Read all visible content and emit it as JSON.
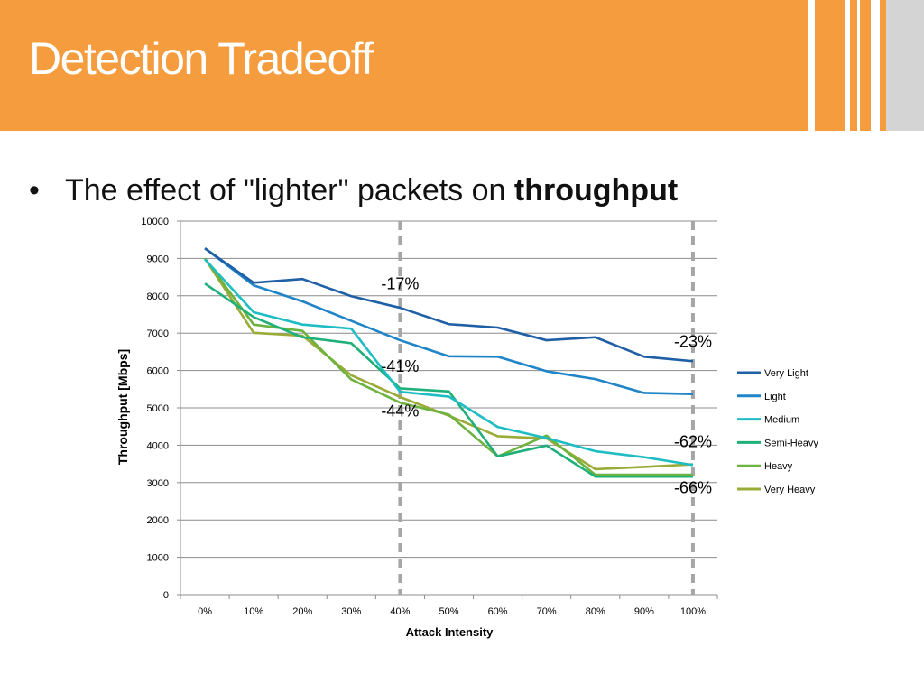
{
  "slide": {
    "title": "Detection Tradeoff",
    "bullet_prefix": "The effect of \"lighter\" packets on ",
    "bullet_bold": "throughput",
    "bullet_symbol": "•"
  },
  "colors": {
    "header": "#f49c3e",
    "very_light": "#1f5fa6",
    "light": "#1f84c8",
    "medium": "#1ebdc4",
    "semi_heavy": "#1fb07a",
    "heavy": "#6db33f",
    "very_heavy": "#9aab38"
  },
  "chart_data": {
    "type": "line",
    "xlabel": "Attack Intensity",
    "ylabel": "Throughput [Mbps]",
    "categories": [
      "0%",
      "10%",
      "20%",
      "30%",
      "40%",
      "50%",
      "60%",
      "70%",
      "80%",
      "90%",
      "100%"
    ],
    "ylim": [
      0,
      10000
    ],
    "yticks": [
      "0",
      "1000",
      "2000",
      "3000",
      "4000",
      "5000",
      "6000",
      "7000",
      "8000",
      "9000",
      "10000"
    ],
    "grid": true,
    "legend": "right",
    "series": [
      {
        "name": "Very Light",
        "color": "#1f5fa6",
        "values": [
          9270,
          8350,
          8450,
          7990,
          7680,
          7240,
          7150,
          6810,
          6890,
          6370,
          6250
        ]
      },
      {
        "name": "Light",
        "color": "#1f84c8",
        "values": [
          9270,
          8280,
          7850,
          7330,
          6810,
          6380,
          6370,
          5980,
          5770,
          5400,
          5370
        ]
      },
      {
        "name": "Medium",
        "color": "#1ebdc4",
        "values": [
          8980,
          7560,
          7230,
          7120,
          5430,
          5300,
          4490,
          4190,
          3840,
          3680,
          3470
        ]
      },
      {
        "name": "Semi-Heavy",
        "color": "#1fb07a",
        "values": [
          8330,
          7430,
          6890,
          6730,
          5520,
          5440,
          3700,
          3990,
          3160,
          3160,
          3160
        ]
      },
      {
        "name": "Heavy",
        "color": "#6db33f",
        "values": [
          9000,
          7230,
          7060,
          5760,
          5140,
          4820,
          3700,
          4260,
          3210,
          3210,
          3210
        ]
      },
      {
        "name": "Very Heavy",
        "color": "#9aab38",
        "values": [
          9000,
          7010,
          6930,
          5870,
          5290,
          4790,
          4240,
          4180,
          3360,
          3420,
          3490
        ]
      }
    ],
    "annotations": [
      {
        "text": "-17%",
        "x": "40%",
        "y": 8180
      },
      {
        "text": "-41%",
        "x": "40%",
        "y": 5970
      },
      {
        "text": "-44%",
        "x": "40%",
        "y": 4770
      },
      {
        "text": "-23%",
        "x": "100%",
        "y": 6630
      },
      {
        "text": "-62%",
        "x": "100%",
        "y": 3950
      },
      {
        "text": "-66%",
        "x": "100%",
        "y": 2720
      }
    ],
    "markers": [
      {
        "x": "40%",
        "style": "dashed"
      },
      {
        "x": "100%",
        "style": "dashed"
      }
    ]
  }
}
